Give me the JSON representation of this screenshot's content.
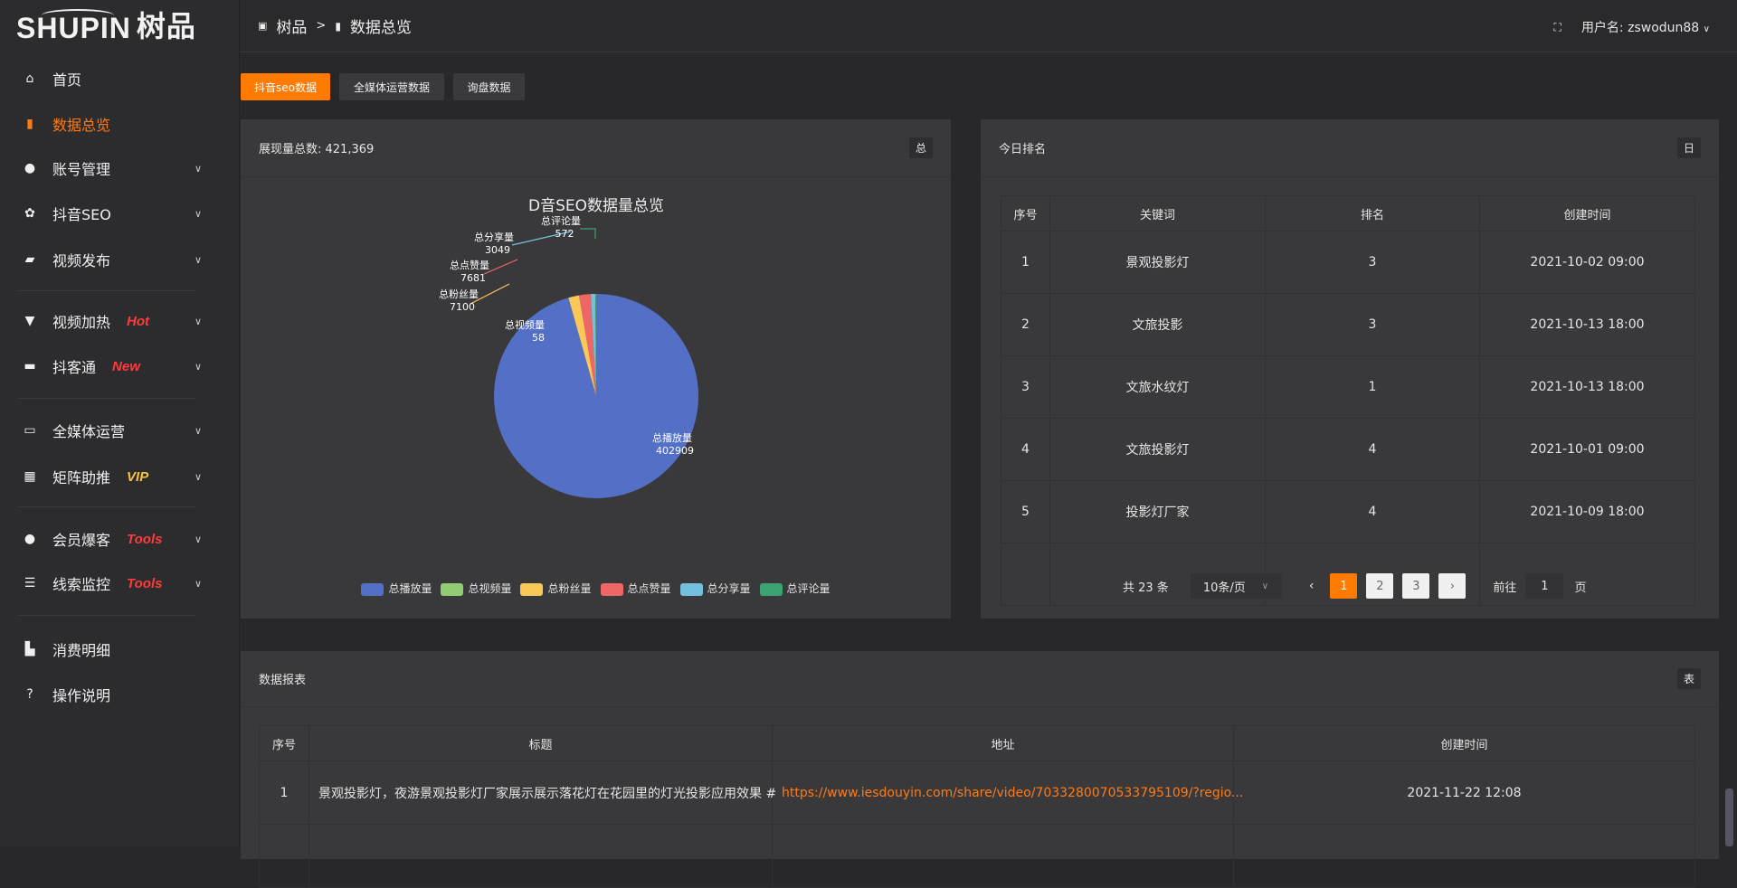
{
  "logo": {
    "text": "SHUPIN",
    "cn": "树品"
  },
  "sidebar": {
    "items": [
      {
        "label": "首页",
        "icon": "home-icon"
      },
      {
        "label": "数据总览",
        "icon": "bar-chart-icon",
        "active": true
      },
      {
        "label": "账号管理",
        "icon": "user-icon",
        "chevron": true
      },
      {
        "label": "抖音SEO",
        "icon": "gear-icon",
        "chevron": true
      },
      {
        "label": "视频发布",
        "icon": "camera-icon",
        "chevron": true
      },
      {
        "label": "视频加热",
        "icon": "sign-icon",
        "chevron": true,
        "badge": "Hot",
        "badge_color": "#ff3b3b"
      },
      {
        "label": "抖客通",
        "icon": "chat-icon",
        "chevron": true,
        "badge": "New",
        "badge_color": "#ff3b3b"
      },
      {
        "label": "全媒体运营",
        "icon": "monitor-icon",
        "chevron": true
      },
      {
        "label": "矩阵助推",
        "icon": "grid-icon",
        "chevron": true,
        "badge": "VIP",
        "badge_color": "#f5c542"
      },
      {
        "label": "会员爆客",
        "icon": "user-icon",
        "chevron": true,
        "badge": "Tools",
        "badge_color": "#ff3b3b"
      },
      {
        "label": "线索监控",
        "icon": "sliders-icon",
        "chevron": true,
        "badge": "Tools",
        "badge_color": "#ff3b3b"
      },
      {
        "label": "消费明细",
        "icon": "wallet-icon"
      },
      {
        "label": "操作说明",
        "icon": "help-icon"
      }
    ]
  },
  "header": {
    "breadcrumb": [
      "树品",
      "数据总览"
    ],
    "separator": ">",
    "user_label": "用户名: zswodun88"
  },
  "tabs": [
    {
      "label": "抖音seo数据",
      "active": true
    },
    {
      "label": "全媒体运营数据"
    },
    {
      "label": "询盘数据"
    }
  ],
  "left_panel": {
    "title": "展现量总数: 421,369",
    "tag": "总"
  },
  "chart_data": {
    "type": "pie",
    "title": "D音SEO数据量总览",
    "legend_position": "bottom",
    "categories": [
      "总播放量",
      "总视频量",
      "总粉丝量",
      "总点赞量",
      "总分享量",
      "总评论量"
    ],
    "values": [
      402909,
      58,
      7100,
      7681,
      3049,
      572
    ],
    "colors": [
      "#5470c6",
      "#91cc75",
      "#fac858",
      "#ee6666",
      "#73c0de",
      "#3ba272"
    ]
  },
  "right_panel": {
    "title": "今日排名",
    "tag": "日",
    "columns": [
      "序号",
      "关键词",
      "排名",
      "创建时间"
    ],
    "rows": [
      [
        "1",
        "景观投影灯",
        "3",
        "2021-10-02 09:00"
      ],
      [
        "2",
        "文旅投影",
        "3",
        "2021-10-13 18:00"
      ],
      [
        "3",
        "文旅水纹灯",
        "1",
        "2021-10-13 18:00"
      ],
      [
        "4",
        "文旅投影灯",
        "4",
        "2021-10-01 09:00"
      ],
      [
        "5",
        "投影灯厂家",
        "4",
        "2021-10-09 18:00"
      ]
    ],
    "pagination": {
      "total": "共 23 条",
      "page_size": "10条/页",
      "pages": [
        "1",
        "2",
        "3"
      ],
      "current": "1",
      "goto_label": "前往",
      "goto_value": "1",
      "page_unit": "页"
    }
  },
  "report_panel": {
    "title": "数据报表",
    "tag": "表",
    "columns": [
      "序号",
      "标题",
      "地址",
      "创建时间"
    ],
    "rows": [
      [
        "1",
        "景观投影灯，夜游景观投影灯厂家展示展示落花灯在花园里的灯光投影应用效果 #",
        "https://www.iesdouyin.com/share/video/7033280070533795109/?regio...",
        "2021-11-22 12:08"
      ]
    ]
  },
  "accent": "#ff7a00"
}
